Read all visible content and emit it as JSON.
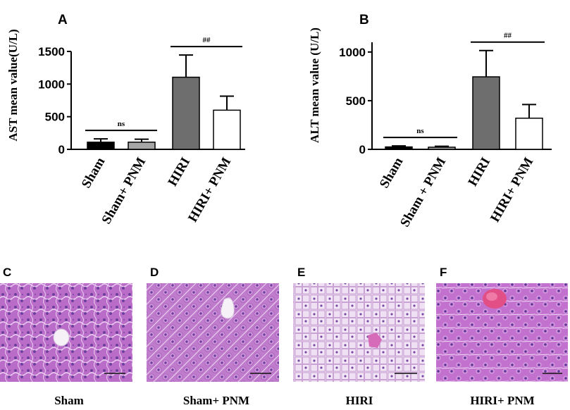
{
  "chart_data": [
    {
      "panel_label": "A",
      "type": "bar",
      "ylabel": "AST mean value(U/L)",
      "ylim": [
        0,
        1500
      ],
      "yticks": [
        0,
        500,
        1000,
        1500
      ],
      "categories": [
        "Sham",
        "Sham+ PNM",
        "HIRI",
        "HIRI+ PNM"
      ],
      "values": [
        110,
        110,
        1105,
        600
      ],
      "errors": [
        50,
        45,
        340,
        215
      ],
      "bar_colors": [
        "#000000",
        "#a6a6a6",
        "#6e6e6e",
        "#ffffff"
      ],
      "annotations": [
        {
          "text": "ns",
          "between": [
            "Sham",
            "Sham+ PNM"
          ]
        },
        {
          "text": "##",
          "between": [
            "HIRI",
            "HIRI+ PNM"
          ]
        }
      ]
    },
    {
      "panel_label": "B",
      "type": "bar",
      "ylabel": "ALT mean value (U/L)",
      "ylim": [
        0,
        1100
      ],
      "yticks": [
        0,
        500,
        1000
      ],
      "categories": [
        "Sham",
        "Sham + PNM",
        "HIRI",
        "HIRI+ PNM"
      ],
      "values": [
        25,
        22,
        745,
        320
      ],
      "errors": [
        10,
        10,
        270,
        140
      ],
      "bar_colors": [
        "#000000",
        "#a6a6a6",
        "#6e6e6e",
        "#ffffff"
      ],
      "annotations": [
        {
          "text": "ns",
          "between": [
            "Sham",
            "Sham + PNM"
          ]
        },
        {
          "text": "##",
          "between": [
            "HIRI",
            "HIRI+ PNM"
          ]
        }
      ]
    }
  ],
  "histology": [
    {
      "panel_label": "C",
      "caption": "Sham"
    },
    {
      "panel_label": "D",
      "caption": "Sham+ PNM"
    },
    {
      "panel_label": "E",
      "caption": "HIRI"
    },
    {
      "panel_label": "F",
      "caption": "HIRI+ PNM"
    }
  ],
  "colors": {
    "tissue_dark": "#b468c4",
    "tissue_pale": "#e9d3ee",
    "nucleus": "#6d3f9c",
    "sinusoid": "#f4e9f6"
  }
}
